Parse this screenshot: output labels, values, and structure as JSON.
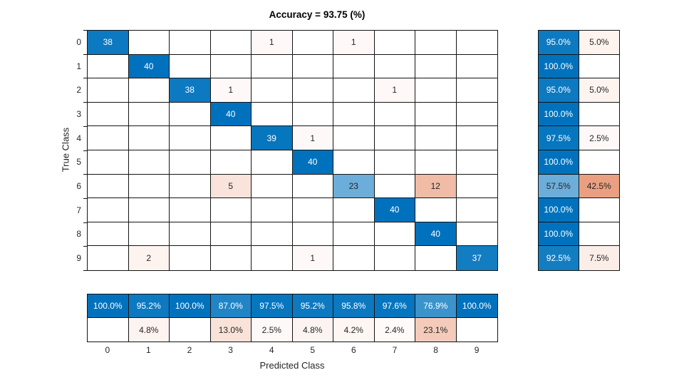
{
  "title": "Accuracy = 93.75 (%)",
  "xlabel": "Predicted Class",
  "ylabel": "True Class",
  "colors": {
    "correct_base": "#0072bd",
    "incorrect_base": "#d95319",
    "grid_line": "#141414",
    "text_dark": "#262626",
    "text_light": "#ffffff",
    "background": "#ffffff"
  },
  "chart_data": {
    "type": "heatmap",
    "subtype": "confusion-matrix",
    "title": "Accuracy = 93.75 (%)",
    "xlabel": "Predicted Class",
    "ylabel": "True Class",
    "classes": [
      "0",
      "1",
      "2",
      "3",
      "4",
      "5",
      "6",
      "7",
      "8",
      "9"
    ],
    "matrix": [
      [
        38,
        0,
        0,
        0,
        1,
        0,
        1,
        0,
        0,
        0
      ],
      [
        0,
        40,
        0,
        0,
        0,
        0,
        0,
        0,
        0,
        0
      ],
      [
        0,
        0,
        38,
        1,
        0,
        0,
        0,
        1,
        0,
        0
      ],
      [
        0,
        0,
        0,
        40,
        0,
        0,
        0,
        0,
        0,
        0
      ],
      [
        0,
        0,
        0,
        0,
        39,
        1,
        0,
        0,
        0,
        0
      ],
      [
        0,
        0,
        0,
        0,
        0,
        40,
        0,
        0,
        0,
        0
      ],
      [
        0,
        0,
        0,
        5,
        0,
        0,
        23,
        0,
        12,
        0
      ],
      [
        0,
        0,
        0,
        0,
        0,
        0,
        0,
        40,
        0,
        0
      ],
      [
        0,
        0,
        0,
        0,
        0,
        0,
        0,
        0,
        40,
        0
      ],
      [
        0,
        2,
        0,
        0,
        0,
        1,
        0,
        0,
        0,
        37
      ]
    ],
    "row_summary": [
      [
        95.0,
        5.0
      ],
      [
        100.0,
        null
      ],
      [
        95.0,
        5.0
      ],
      [
        100.0,
        null
      ],
      [
        97.5,
        2.5
      ],
      [
        100.0,
        null
      ],
      [
        57.5,
        42.5
      ],
      [
        100.0,
        null
      ],
      [
        100.0,
        null
      ],
      [
        92.5,
        7.5
      ]
    ],
    "col_summary": [
      [
        100.0,
        null
      ],
      [
        95.2,
        4.8
      ],
      [
        100.0,
        null
      ],
      [
        87.0,
        13.0
      ],
      [
        97.5,
        2.5
      ],
      [
        95.2,
        4.8
      ],
      [
        95.8,
        4.2
      ],
      [
        97.6,
        2.4
      ],
      [
        76.9,
        23.1
      ],
      [
        100.0,
        null
      ]
    ]
  }
}
